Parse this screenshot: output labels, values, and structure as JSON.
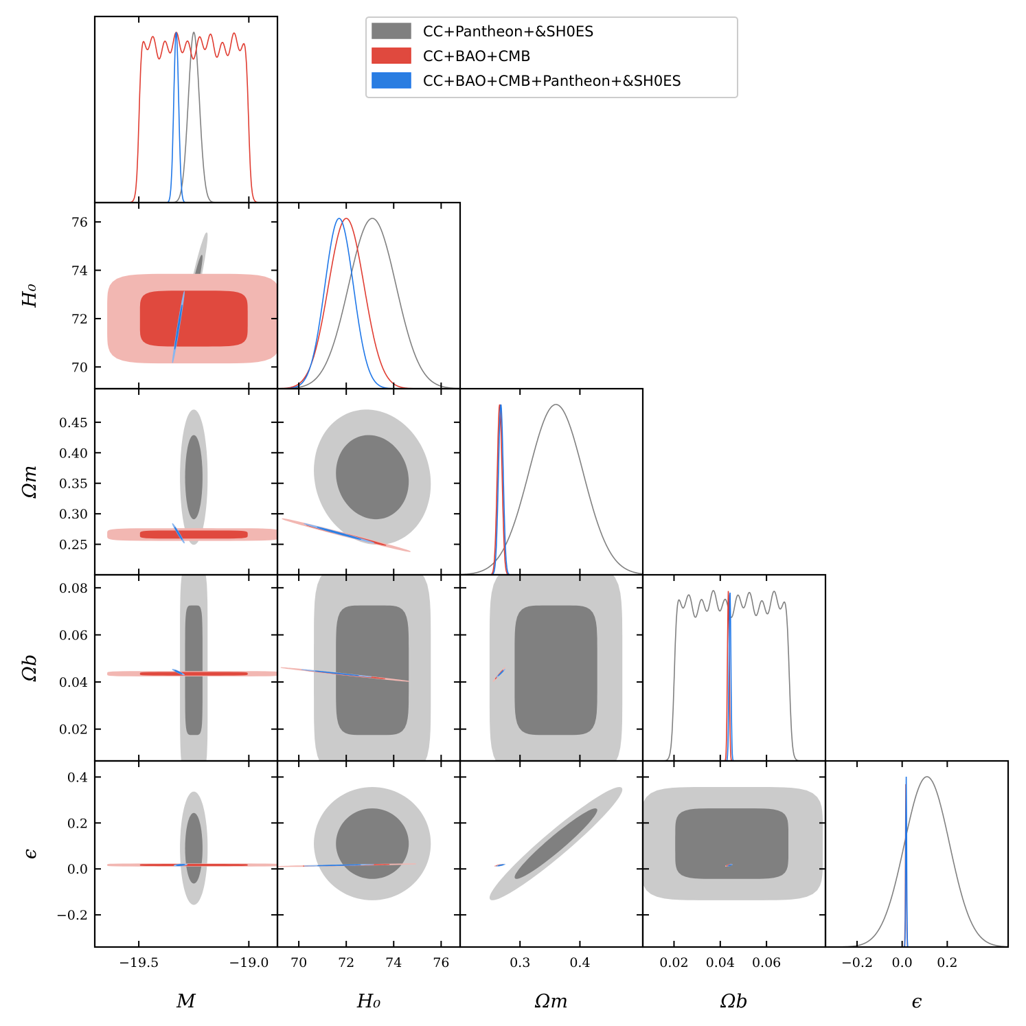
{
  "chart_data": {
    "type": "corner",
    "parameters": [
      {
        "key": "M",
        "label": "M",
        "range": [
          -19.7,
          -18.87
        ],
        "ticks": [
          -19.5,
          -19.0
        ],
        "tick_labels": [
          "−19.5",
          "−19.0"
        ]
      },
      {
        "key": "H0",
        "label": "H₀",
        "range": [
          69.1,
          76.8
        ],
        "ticks": [
          70,
          72,
          74,
          76
        ],
        "tick_labels": [
          "70",
          "72",
          "74",
          "76"
        ]
      },
      {
        "key": "Om",
        "label": "Ωm",
        "range": [
          0.2,
          0.505
        ],
        "ticks": [
          0.25,
          0.3,
          0.35,
          0.4,
          0.45
        ],
        "tick_labels": [
          "0.25",
          "0.30",
          "0.35",
          "0.40",
          "0.45"
        ],
        "x_ticks": [
          0.3,
          0.4
        ],
        "x_tick_labels": [
          "0.3",
          "0.4"
        ]
      },
      {
        "key": "Ob",
        "label": "Ωb",
        "range": [
          0.0065,
          0.0855
        ],
        "ticks": [
          0.02,
          0.04,
          0.06,
          0.08
        ],
        "tick_labels": [
          "0.02",
          "0.04",
          "0.06",
          "0.08"
        ],
        "x_ticks": [
          0.02,
          0.04,
          0.06
        ],
        "x_tick_labels": [
          "0.02",
          "0.04",
          "0.06"
        ]
      },
      {
        "key": "eps",
        "label": "ϵ",
        "range": [
          -0.34,
          0.47
        ],
        "ticks": [
          -0.2,
          0.0,
          0.2,
          0.4
        ],
        "tick_labels": [
          "−0.2",
          "0.0",
          "0.2",
          "0.4"
        ],
        "x_ticks": [
          -0.2,
          0.0,
          0.2
        ],
        "x_tick_labels": [
          "−0.2",
          "0.0",
          "0.2"
        ]
      }
    ],
    "series": [
      {
        "name": "CC+Pantheon+&SH0ES",
        "color": "#808080",
        "fill_inner": "#808080",
        "fill_outer": "#cbcbcb",
        "marginals": {
          "M": {
            "type": "gauss",
            "mean": -19.25,
            "sd": 0.025
          },
          "H0": {
            "type": "gauss",
            "mean": 73.1,
            "sd": 1.0
          },
          "Om": {
            "type": "gauss",
            "mean": 0.36,
            "sd": 0.045
          },
          "Ob": {
            "type": "flat",
            "lo": 0.02,
            "hi": 0.07
          },
          "eps": {
            "type": "gauss",
            "mean": 0.11,
            "sd": 0.1
          }
        }
      },
      {
        "name": "CC+BAO+CMB",
        "color": "#e03c31",
        "fill_inner": "#e0493e",
        "fill_outer": "#f2b7b2",
        "marginals": {
          "M": {
            "type": "flat",
            "lo": -19.5,
            "hi": -19.0
          },
          "H0": {
            "type": "gauss",
            "mean": 72.0,
            "sd": 0.75
          },
          "Om": {
            "type": "gauss",
            "mean": 0.266,
            "sd": 0.004
          },
          "Ob": {
            "type": "gauss",
            "mean": 0.0435,
            "sd": 0.0004
          },
          "eps": {
            "type": "gauss",
            "mean": 0.017,
            "sd": 0.002
          }
        }
      },
      {
        "name": "CC+BAO+CMB+Pantheon+&SH0ES",
        "color": "#1f77e8",
        "fill_inner": "#2a7de1",
        "fill_outer": "#8ab6ee",
        "marginals": {
          "M": {
            "type": "gauss",
            "mean": -19.33,
            "sd": 0.011
          },
          "H0": {
            "type": "gauss",
            "mean": 71.7,
            "sd": 0.6
          },
          "Om": {
            "type": "gauss",
            "mean": 0.268,
            "sd": 0.004
          },
          "Ob": {
            "type": "gauss",
            "mean": 0.0442,
            "sd": 0.0004
          },
          "eps": {
            "type": "gauss",
            "mean": 0.018,
            "sd": 0.002
          }
        }
      }
    ],
    "contours_2d": [
      {
        "series": 0,
        "x": "M",
        "y": "H0",
        "cx": -19.25,
        "cy": 73.1,
        "sx": 0.025,
        "sy": 1.0,
        "rho": 0.95
      },
      {
        "series": 0,
        "x": "M",
        "y": "Om",
        "cx": -19.25,
        "cy": 0.36,
        "sx": 0.025,
        "sy": 0.045,
        "rho": 0.0
      },
      {
        "series": 0,
        "x": "H0",
        "y": "Om",
        "cx": 73.1,
        "cy": 0.36,
        "sx": 1.0,
        "sy": 0.045,
        "rho": -0.1
      },
      {
        "series": 0,
        "x": "M",
        "y": "Ob",
        "cx": -19.25,
        "cy": 0.045,
        "sx": 0.025,
        "sy": 0.018,
        "rho": 0.0,
        "box": true
      },
      {
        "series": 0,
        "x": "H0",
        "y": "Ob",
        "cx": 73.1,
        "cy": 0.045,
        "sx": 1.0,
        "sy": 0.018,
        "rho": 0.0,
        "box": true
      },
      {
        "series": 0,
        "x": "Om",
        "y": "Ob",
        "cx": 0.36,
        "cy": 0.045,
        "sx": 0.045,
        "sy": 0.018,
        "rho": 0.0,
        "box": true
      },
      {
        "series": 0,
        "x": "M",
        "y": "eps",
        "cx": -19.25,
        "cy": 0.09,
        "sx": 0.025,
        "sy": 0.1,
        "rho": 0.0
      },
      {
        "series": 0,
        "x": "H0",
        "y": "eps",
        "cx": 73.1,
        "cy": 0.11,
        "sx": 1.0,
        "sy": 0.1,
        "rho": 0.0
      },
      {
        "series": 0,
        "x": "Om",
        "y": "eps",
        "cx": 0.36,
        "cy": 0.11,
        "sx": 0.045,
        "sy": 0.1,
        "rho": 0.96
      },
      {
        "series": 0,
        "x": "Ob",
        "y": "eps",
        "cx": 0.045,
        "cy": 0.11,
        "sx": 0.016,
        "sy": 0.1,
        "rho": 0.0,
        "box": true
      },
      {
        "series": 1,
        "x": "M",
        "y": "H0",
        "cx": -19.25,
        "cy": 72.0,
        "sx": 0.16,
        "sy": 0.75,
        "rho": 0.0,
        "box": true
      },
      {
        "series": 1,
        "x": "M",
        "y": "Om",
        "cx": -19.25,
        "cy": 0.266,
        "sx": 0.16,
        "sy": 0.004,
        "rho": 0.0,
        "box": true
      },
      {
        "series": 1,
        "x": "H0",
        "y": "Om",
        "cx": 72.0,
        "cy": 0.265,
        "sx": 1.1,
        "sy": 0.011,
        "rho": -0.995
      },
      {
        "series": 1,
        "x": "M",
        "y": "Ob",
        "cx": -19.25,
        "cy": 0.0435,
        "sx": 0.16,
        "sy": 0.0004,
        "rho": 0.0,
        "box": true
      },
      {
        "series": 1,
        "x": "H0",
        "y": "Ob",
        "cx": 71.95,
        "cy": 0.0432,
        "sx": 1.1,
        "sy": 0.0012,
        "rho": -0.995
      },
      {
        "series": 1,
        "x": "Om",
        "y": "Ob",
        "cx": 0.265,
        "cy": 0.0432,
        "sx": 0.004,
        "sy": 0.0012,
        "rho": 0.995
      },
      {
        "series": 1,
        "x": "M",
        "y": "eps",
        "cx": -19.25,
        "cy": 0.017,
        "sx": 0.16,
        "sy": 0.002,
        "rho": 0.0,
        "box": true
      },
      {
        "series": 1,
        "x": "H0",
        "y": "eps",
        "cx": 72.0,
        "cy": 0.016,
        "sx": 1.2,
        "sy": 0.0025,
        "rho": 0.95
      },
      {
        "series": 1,
        "x": "Om",
        "y": "eps",
        "cx": 0.265,
        "cy": 0.016,
        "sx": 0.003,
        "sy": 0.0018,
        "rho": 0.9
      },
      {
        "series": 1,
        "x": "Ob",
        "y": "eps",
        "cx": 0.0435,
        "cy": 0.016,
        "sx": 0.0005,
        "sy": 0.0018,
        "rho": 0.9
      },
      {
        "series": 2,
        "x": "M",
        "y": "H0",
        "cx": -19.32,
        "cy": 71.65,
        "sx": 0.011,
        "sy": 0.6,
        "rho": 0.985
      },
      {
        "series": 2,
        "x": "M",
        "y": "Om",
        "cx": -19.32,
        "cy": 0.268,
        "sx": 0.011,
        "sy": 0.0065,
        "rho": -0.985
      },
      {
        "series": 2,
        "x": "H0",
        "y": "Om",
        "cx": 71.7,
        "cy": 0.268,
        "sx": 0.6,
        "sy": 0.0065,
        "rho": -0.995
      },
      {
        "series": 2,
        "x": "M",
        "y": "Ob",
        "cx": -19.32,
        "cy": 0.0442,
        "sx": 0.011,
        "sy": 0.0005,
        "rho": -0.95
      },
      {
        "series": 2,
        "x": "H0",
        "y": "Ob",
        "cx": 71.6,
        "cy": 0.0437,
        "sx": 0.6,
        "sy": 0.00065,
        "rho": -0.995
      },
      {
        "series": 2,
        "x": "Om",
        "y": "Ob",
        "cx": 0.268,
        "cy": 0.0437,
        "sx": 0.0028,
        "sy": 0.0007,
        "rho": 0.99
      },
      {
        "series": 2,
        "x": "M",
        "y": "eps",
        "cx": -19.31,
        "cy": 0.017,
        "sx": 0.012,
        "sy": 0.0018,
        "rho": 0.5
      },
      {
        "series": 2,
        "x": "H0",
        "y": "eps",
        "cx": 71.7,
        "cy": 0.016,
        "sx": 0.6,
        "sy": 0.0015,
        "rho": 0.9
      },
      {
        "series": 2,
        "x": "Om",
        "y": "eps",
        "cx": 0.268,
        "cy": 0.016,
        "sx": 0.0028,
        "sy": 0.0018,
        "rho": 0.9
      },
      {
        "series": 2,
        "x": "Ob",
        "y": "eps",
        "cx": 0.0442,
        "cy": 0.016,
        "sx": 0.0004,
        "sy": 0.0015,
        "rho": 0.9
      }
    ],
    "legend": {
      "location": "top-center",
      "entries": [
        "CC+Pantheon+&SH0ES",
        "CC+BAO+CMB",
        "CC+BAO+CMB+Pantheon+&SH0ES"
      ]
    }
  }
}
